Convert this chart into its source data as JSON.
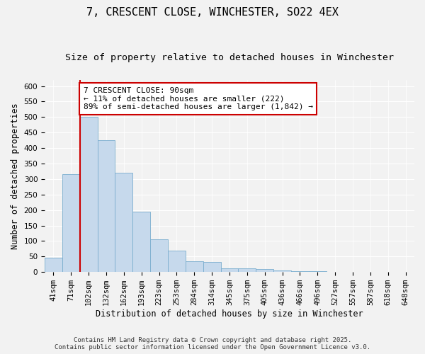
{
  "title": "7, CRESCENT CLOSE, WINCHESTER, SO22 4EX",
  "subtitle": "Size of property relative to detached houses in Winchester",
  "xlabel": "Distribution of detached houses by size in Winchester",
  "ylabel": "Number of detached properties",
  "categories": [
    "41sqm",
    "71sqm",
    "102sqm",
    "132sqm",
    "162sqm",
    "193sqm",
    "223sqm",
    "253sqm",
    "284sqm",
    "314sqm",
    "345sqm",
    "375sqm",
    "405sqm",
    "436sqm",
    "466sqm",
    "496sqm",
    "527sqm",
    "557sqm",
    "587sqm",
    "618sqm",
    "648sqm"
  ],
  "values": [
    47,
    315,
    500,
    425,
    320,
    195,
    105,
    70,
    35,
    32,
    13,
    13,
    10,
    5,
    3,
    2,
    1,
    1,
    0,
    0,
    0
  ],
  "bar_color": "#c6d9ec",
  "bar_edge_color": "#7aadce",
  "vline_x_index": 2,
  "vline_color": "#cc0000",
  "annotation_text": "7 CRESCENT CLOSE: 90sqm\n← 11% of detached houses are smaller (222)\n89% of semi-detached houses are larger (1,842) →",
  "annotation_box_color": "#ffffff",
  "annotation_box_edge": "#cc0000",
  "ylim": [
    0,
    620
  ],
  "yticks": [
    0,
    50,
    100,
    150,
    200,
    250,
    300,
    350,
    400,
    450,
    500,
    550,
    600
  ],
  "background_color": "#f2f2f2",
  "plot_bg_color": "#f2f2f2",
  "footer_line1": "Contains HM Land Registry data © Crown copyright and database right 2025.",
  "footer_line2": "Contains public sector information licensed under the Open Government Licence v3.0.",
  "title_fontsize": 11,
  "subtitle_fontsize": 9.5,
  "axis_label_fontsize": 8.5,
  "tick_fontsize": 7.5,
  "annotation_fontsize": 8,
  "footer_fontsize": 6.5
}
